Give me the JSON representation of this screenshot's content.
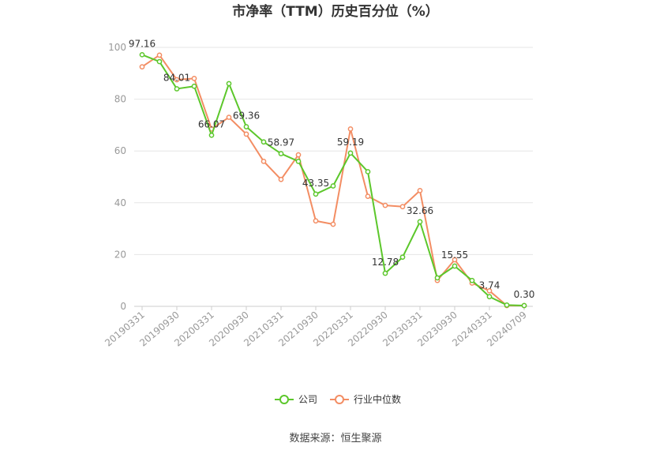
{
  "chart_data": {
    "type": "line",
    "title": "市净率（TTM）历史百分位（%）",
    "x_tick_labels": [
      "20190331",
      "20190930",
      "20200331",
      "20200930",
      "20210331",
      "20210930",
      "20220331",
      "20220930",
      "20230331",
      "20230930",
      "20240331",
      "20240709"
    ],
    "x": [
      "20190331",
      "20190630",
      "20190930",
      "20191231",
      "20200331",
      "20200630",
      "20200930",
      "20201231",
      "20210331",
      "20210630",
      "20210930",
      "20211231",
      "20220331",
      "20220630",
      "20220930",
      "20221231",
      "20230331",
      "20230630",
      "20230930",
      "20231231",
      "20240331",
      "20240630",
      "20240709"
    ],
    "ylim": [
      0,
      100
    ],
    "yticks": [
      0,
      20,
      40,
      60,
      80,
      100
    ],
    "grid": true,
    "legend_position": "bottom",
    "series": [
      {
        "name": "公司",
        "color": "#5cc72b",
        "values": [
          97.16,
          94.5,
          84.01,
          85.0,
          66.07,
          86.0,
          69.36,
          63.5,
          58.97,
          56.0,
          43.35,
          46.5,
          59.19,
          52.0,
          12.78,
          19.0,
          32.66,
          11.0,
          15.55,
          10.0,
          3.74,
          0.5,
          0.3
        ],
        "labels": {
          "0": "97.16",
          "2": "84.01",
          "4": "66.07",
          "6": "69.36",
          "8": "58.97",
          "10": "43.35",
          "12": "59.19",
          "14": "12.78",
          "16": "32.66",
          "18": "15.55",
          "20": "3.74",
          "22": "0.30"
        }
      },
      {
        "name": "行业中位数",
        "color": "#f38d63",
        "values": [
          92.5,
          97.0,
          87.5,
          88.0,
          68.5,
          73.0,
          66.5,
          56.0,
          49.0,
          58.5,
          33.0,
          31.7,
          68.5,
          42.5,
          39.0,
          38.5,
          44.7,
          10.0,
          18.0,
          9.0,
          6.0,
          0.3,
          0.3
        ]
      }
    ]
  },
  "source_text": "数据来源：恒生聚源"
}
